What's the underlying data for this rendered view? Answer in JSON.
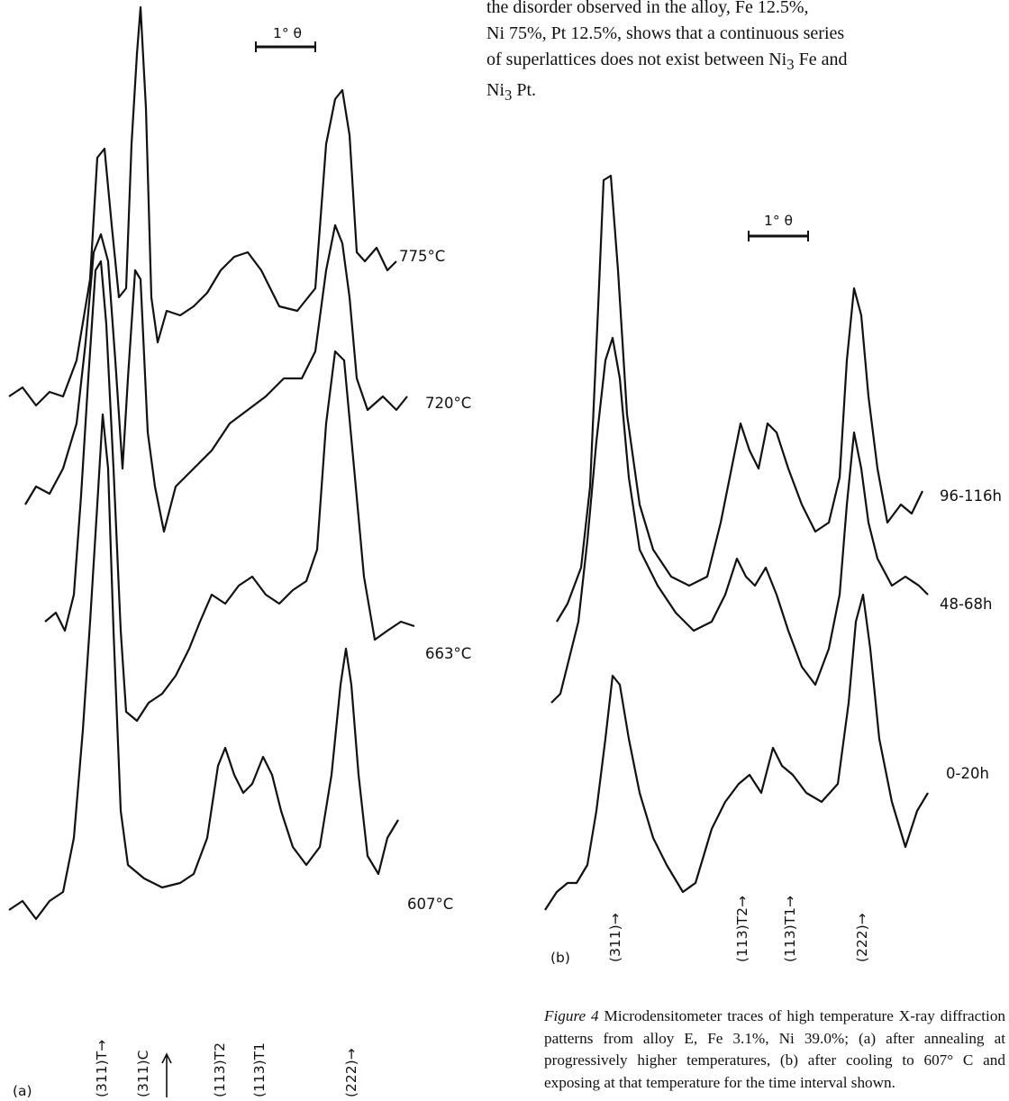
{
  "body_text": {
    "line1": "the disorder observed in the alloy, Fe 12.5%,",
    "line2": "Ni 75%, Pt 12.5%, shows that a continuous series",
    "line3": "of superlattices does not exist between Ni",
    "line3_sub": "3",
    "line3_end": " Fe and",
    "line4": "Ni",
    "line4_sub": "3",
    "line4_end": " Pt."
  },
  "panel_a": {
    "panel_label": "(a)",
    "scale_bar_label": "1° θ",
    "traces": [
      {
        "label": "775°C"
      },
      {
        "label": "720°C"
      },
      {
        "label": "663°C"
      },
      {
        "label": "607°C"
      }
    ],
    "peak_labels": [
      "(311)T→",
      "(311)C",
      "(113)T2",
      "(113)T1",
      "(222)→"
    ]
  },
  "panel_b": {
    "panel_label": "(b)",
    "scale_bar_label": "1° θ",
    "traces": [
      {
        "label": "96-116h"
      },
      {
        "label": "48-68h"
      },
      {
        "label": "0-20h"
      }
    ],
    "peak_labels": [
      "(311)→",
      "(113)T2→",
      "(113)T1→",
      "(222)→"
    ]
  },
  "caption": {
    "lead": "Figure 4",
    "text": " Microdensitometer traces of high temperature X-ray diffraction patterns from alloy E, Fe 3.1%, Ni 39.0%; (a) after annealing at progressively higher temperatures, (b) after cooling to 607° C and exposing at that temperature for the time interval shown."
  }
}
